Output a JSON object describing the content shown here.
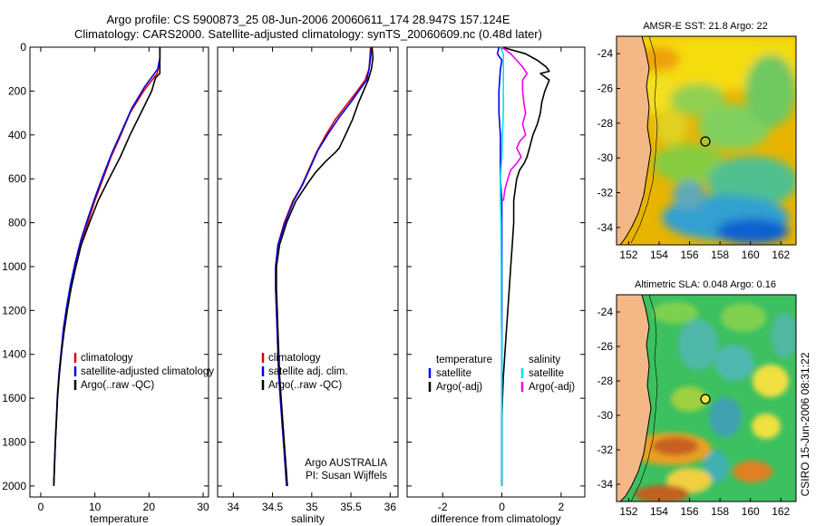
{
  "title": {
    "line1": "Argo profile: CS 5900873_25 08-Jun-2006 20060611_174 28.947S 157.124E",
    "line2": "Climatology: CARS2000. Satellite-adjusted climatology: synTS_20060609.nc (0.48d later)"
  },
  "credit": "CSIRO 15-Jun-2006 08:31:22",
  "colors": {
    "climatology": "#dd0000",
    "satellite": "#0000ee",
    "argo": "#000000",
    "salinity_satellite": "#00e5ee",
    "salinity_argo": "#ee00ee",
    "land": "#f4b887"
  },
  "chart_data": [
    {
      "id": "temperature",
      "type": "line",
      "xlabel": "temperature",
      "xlim": [
        -2,
        31
      ],
      "ylim": [
        2050,
        0
      ],
      "xticks": [
        "0",
        "10",
        "20",
        "30"
      ],
      "yticks": [
        "0",
        "200",
        "400",
        "600",
        "800",
        "1000",
        "1200",
        "1400",
        "1600",
        "1800",
        "2000"
      ],
      "legend": [
        "climatology",
        "satellite-adjusted climatology",
        "Argo(..raw -QC)"
      ],
      "series": [
        {
          "name": "climatology",
          "color": "climatology",
          "points": [
            [
              22,
              0
            ],
            [
              22,
              60
            ],
            [
              21.5,
              120
            ],
            [
              19,
              200
            ],
            [
              16.5,
              300
            ],
            [
              14.8,
              400
            ],
            [
              13,
              500
            ],
            [
              11.5,
              600
            ],
            [
              10,
              700
            ],
            [
              8.7,
              800
            ],
            [
              7.3,
              900
            ],
            [
              6.4,
              1000
            ],
            [
              5.5,
              1100
            ],
            [
              4.8,
              1200
            ],
            [
              4.2,
              1300
            ],
            [
              3.8,
              1400
            ],
            [
              3.4,
              1500
            ],
            [
              3.1,
              1600
            ],
            [
              2.9,
              1700
            ],
            [
              2.7,
              1800
            ],
            [
              2.55,
              1900
            ],
            [
              2.4,
              2000
            ]
          ]
        },
        {
          "name": "satellite-adjusted climatology",
          "color": "satellite",
          "points": [
            [
              22,
              0
            ],
            [
              22,
              50
            ],
            [
              21.6,
              100
            ],
            [
              19.2,
              180
            ],
            [
              16.8,
              280
            ],
            [
              15,
              380
            ],
            [
              13.2,
              480
            ],
            [
              11.6,
              580
            ],
            [
              10.1,
              680
            ],
            [
              8.7,
              780
            ],
            [
              7.4,
              880
            ],
            [
              6.4,
              980
            ],
            [
              5.5,
              1080
            ],
            [
              4.8,
              1180
            ],
            [
              4.2,
              1280
            ],
            [
              3.8,
              1380
            ],
            [
              3.4,
              1480
            ],
            [
              3.1,
              1580
            ],
            [
              2.9,
              1680
            ],
            [
              2.7,
              1780
            ],
            [
              2.55,
              1880
            ],
            [
              2.4,
              2000
            ]
          ]
        },
        {
          "name": "Argo",
          "color": "argo",
          "points": [
            [
              22,
              0
            ],
            [
              22,
              120
            ],
            [
              21.2,
              140
            ],
            [
              20.5,
              200
            ],
            [
              18.5,
              300
            ],
            [
              16.5,
              400
            ],
            [
              14.7,
              500
            ],
            [
              12.6,
              600
            ],
            [
              10.6,
              700
            ],
            [
              9,
              800
            ],
            [
              7.5,
              900
            ],
            [
              6.5,
              1000
            ],
            [
              5.6,
              1100
            ],
            [
              4.9,
              1200
            ],
            [
              4.3,
              1300
            ],
            [
              3.8,
              1400
            ],
            [
              3.4,
              1500
            ],
            [
              3.1,
              1600
            ],
            [
              2.9,
              1700
            ],
            [
              2.7,
              1800
            ],
            [
              2.55,
              1900
            ],
            [
              2.4,
              2000
            ]
          ]
        }
      ]
    },
    {
      "id": "salinity",
      "type": "line",
      "xlabel": "salinity",
      "xlim": [
        33.8,
        36.1
      ],
      "ylim": [
        2050,
        0
      ],
      "xticks": [
        "34",
        "34.5",
        "35",
        "35.5",
        "36"
      ],
      "legend": [
        "climatology",
        "satellite adj. clim.",
        "Argo(..raw -QC)"
      ],
      "annotation": [
        "Argo AUSTRALIA",
        "PI: Susan Wijffels"
      ],
      "series": [
        {
          "name": "climatology",
          "color": "climatology",
          "points": [
            [
              35.75,
              0
            ],
            [
              35.74,
              50
            ],
            [
              35.73,
              100
            ],
            [
              35.68,
              150
            ],
            [
              35.58,
              200
            ],
            [
              35.45,
              260
            ],
            [
              35.3,
              330
            ],
            [
              35.18,
              400
            ],
            [
              35.06,
              480
            ],
            [
              34.96,
              560
            ],
            [
              34.86,
              640
            ],
            [
              34.76,
              700
            ],
            [
              34.65,
              800
            ],
            [
              34.57,
              900
            ],
            [
              34.54,
              1000
            ],
            [
              34.54,
              1100
            ],
            [
              34.55,
              1200
            ],
            [
              34.56,
              1300
            ],
            [
              34.57,
              1400
            ],
            [
              34.58,
              1500
            ],
            [
              34.6,
              1600
            ],
            [
              34.62,
              1700
            ],
            [
              34.64,
              1800
            ],
            [
              34.66,
              1900
            ],
            [
              34.68,
              2000
            ]
          ]
        },
        {
          "name": "satellite adj. clim.",
          "color": "satellite",
          "points": [
            [
              35.76,
              0
            ],
            [
              35.75,
              50
            ],
            [
              35.73,
              100
            ],
            [
              35.7,
              150
            ],
            [
              35.6,
              200
            ],
            [
              35.5,
              250
            ],
            [
              35.35,
              320
            ],
            [
              35.2,
              400
            ],
            [
              35.08,
              470
            ],
            [
              34.98,
              550
            ],
            [
              34.88,
              630
            ],
            [
              34.77,
              700
            ],
            [
              34.66,
              800
            ],
            [
              34.57,
              900
            ],
            [
              34.54,
              1000
            ],
            [
              34.54,
              1100
            ],
            [
              34.55,
              1200
            ],
            [
              34.56,
              1300
            ],
            [
              34.57,
              1400
            ],
            [
              34.58,
              1500
            ],
            [
              34.6,
              1600
            ],
            [
              34.62,
              1700
            ],
            [
              34.64,
              1800
            ],
            [
              34.66,
              1900
            ],
            [
              34.68,
              2000
            ]
          ]
        },
        {
          "name": "Argo",
          "color": "argo",
          "points": [
            [
              35.77,
              0
            ],
            [
              35.78,
              50
            ],
            [
              35.76,
              100
            ],
            [
              35.72,
              150
            ],
            [
              35.66,
              200
            ],
            [
              35.6,
              250
            ],
            [
              35.52,
              330
            ],
            [
              35.43,
              400
            ],
            [
              35.35,
              460
            ],
            [
              35.3,
              480
            ],
            [
              35.18,
              520
            ],
            [
              35.05,
              570
            ],
            [
              34.95,
              620
            ],
            [
              34.8,
              700
            ],
            [
              34.68,
              800
            ],
            [
              34.59,
              900
            ],
            [
              34.55,
              1000
            ],
            [
              34.55,
              1100
            ],
            [
              34.56,
              1200
            ],
            [
              34.57,
              1300
            ],
            [
              34.58,
              1400
            ],
            [
              34.59,
              1500
            ],
            [
              34.61,
              1600
            ],
            [
              34.63,
              1700
            ],
            [
              34.65,
              1800
            ],
            [
              34.67,
              1900
            ],
            [
              34.69,
              2000
            ]
          ]
        }
      ]
    },
    {
      "id": "difference",
      "type": "line",
      "xlabel": "difference from climatology",
      "xlim": [
        -3.2,
        2.8
      ],
      "ylim": [
        2050,
        0
      ],
      "xticks": [
        "-2",
        "0",
        "2"
      ],
      "legend_headers": [
        "temperature",
        "salinity"
      ],
      "legend_left": [
        "satellite",
        "Argo(-adj)"
      ],
      "legend_right": [
        "satellite",
        "Argo(-adj)"
      ],
      "series": [
        {
          "name": "temperature satellite",
          "color": "satellite",
          "points": [
            [
              -0.1,
              0
            ],
            [
              -0.15,
              30
            ],
            [
              0,
              60
            ],
            [
              -0.05,
              100
            ],
            [
              -0.1,
              200
            ],
            [
              -0.1,
              300
            ],
            [
              -0.05,
              400
            ],
            [
              -0.05,
              500
            ],
            [
              -0.05,
              600
            ],
            [
              0,
              700
            ],
            [
              0,
              800
            ],
            [
              0,
              1000
            ],
            [
              0,
              2000
            ]
          ]
        },
        {
          "name": "temperature Argo",
          "color": "argo",
          "points": [
            [
              0,
              0
            ],
            [
              0.8,
              30
            ],
            [
              1.2,
              60
            ],
            [
              1.5,
              90
            ],
            [
              1.6,
              110
            ],
            [
              1.3,
              120
            ],
            [
              1.6,
              150
            ],
            [
              1.45,
              200
            ],
            [
              1.35,
              250
            ],
            [
              1.3,
              300
            ],
            [
              1.2,
              350
            ],
            [
              1.05,
              400
            ],
            [
              0.95,
              450
            ],
            [
              0.85,
              500
            ],
            [
              0.75,
              530
            ],
            [
              0.6,
              560
            ],
            [
              0.5,
              600
            ],
            [
              0.45,
              650
            ],
            [
              0.4,
              700
            ],
            [
              0.4,
              750
            ],
            [
              0.4,
              800
            ],
            [
              0.35,
              900
            ],
            [
              0.3,
              1000
            ],
            [
              0.25,
              1100
            ],
            [
              0.2,
              1200
            ],
            [
              0.15,
              1300
            ],
            [
              0.1,
              1400
            ],
            [
              0.05,
              1500
            ],
            [
              0.02,
              1600
            ],
            [
              0,
              1700
            ],
            [
              0,
              1800
            ],
            [
              0,
              1900
            ],
            [
              0,
              2000
            ]
          ]
        },
        {
          "name": "salinity satellite",
          "color": "salinity_satellite",
          "points": [
            [
              -0.05,
              0
            ],
            [
              0.05,
              30
            ],
            [
              0.05,
              100
            ],
            [
              0.05,
              200
            ],
            [
              0.05,
              300
            ],
            [
              0.02,
              400
            ],
            [
              0,
              500
            ],
            [
              -0.05,
              600
            ],
            [
              -0.05,
              700
            ],
            [
              -0.03,
              800
            ],
            [
              -0.02,
              1000
            ],
            [
              -0.02,
              1200
            ],
            [
              0,
              1400
            ],
            [
              0,
              1600
            ],
            [
              0,
              1800
            ],
            [
              0,
              2000
            ]
          ]
        },
        {
          "name": "salinity Argo",
          "color": "salinity_argo",
          "points": [
            [
              0,
              0
            ],
            [
              0.3,
              30
            ],
            [
              0.5,
              60
            ],
            [
              0.7,
              90
            ],
            [
              0.85,
              120
            ],
            [
              0.7,
              150
            ],
            [
              0.7,
              200
            ],
            [
              0.75,
              260
            ],
            [
              0.8,
              300
            ],
            [
              0.7,
              350
            ],
            [
              0.8,
              400
            ],
            [
              0.6,
              430
            ],
            [
              0.5,
              460
            ],
            [
              0.65,
              500
            ],
            [
              0.5,
              530
            ],
            [
              0.3,
              560
            ],
            [
              0.2,
              600
            ],
            [
              0.1,
              650
            ],
            [
              0.05,
              700
            ]
          ]
        }
      ]
    }
  ],
  "maps": [
    {
      "id": "sst",
      "title": "AMSR-E SST: 21.8 Argo: 22",
      "lon_range": [
        151.2,
        163.0
      ],
      "lat_range": [
        -35,
        -23
      ],
      "xticks": [
        "152",
        "154",
        "156",
        "158",
        "160",
        "162"
      ],
      "yticks": [
        "-24",
        "-26",
        "-28",
        "-30",
        "-32",
        "-34"
      ]
    },
    {
      "id": "sla",
      "title": "Altimetric SLA: 0.048 Argo: 0.16",
      "lon_range": [
        151.2,
        163.0
      ],
      "lat_range": [
        -35,
        -23
      ],
      "xticks": [
        "152",
        "154",
        "156",
        "158",
        "160",
        "162"
      ],
      "yticks": [
        "-24",
        "-26",
        "-28",
        "-30",
        "-32",
        "-34"
      ]
    }
  ]
}
